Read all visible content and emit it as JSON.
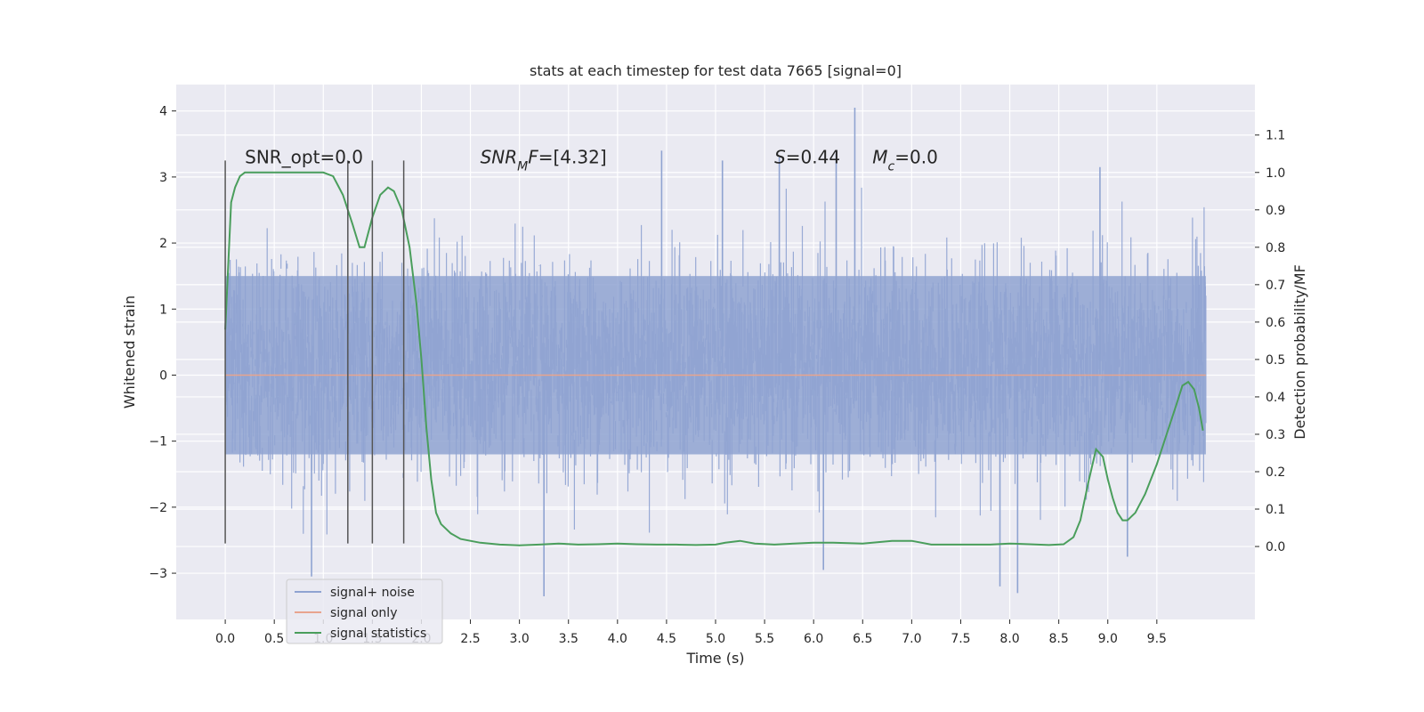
{
  "chart_data": {
    "type": "line",
    "title": "stats at each timestep for test data 7665 [signal=0]",
    "xlabel": "Time (s)",
    "ylabel": "Whitened strain",
    "y2label": "Detection probability/MF",
    "xlim": [
      -0.5,
      10.5
    ],
    "ylim": [
      -3.7,
      4.4
    ],
    "y2lim": [
      -0.195,
      1.235
    ],
    "x_ticks": [
      0.0,
      0.5,
      1.0,
      1.5,
      2.0,
      2.5,
      3.0,
      3.5,
      4.0,
      4.5,
      5.0,
      5.5,
      6.0,
      6.5,
      7.0,
      7.5,
      8.0,
      8.5,
      9.0,
      9.5
    ],
    "x_tick_labels": [
      "0.0",
      "0.5",
      "1.0",
      "1.5",
      "2.0",
      "2.5",
      "3.0",
      "3.5",
      "4.0",
      "4.5",
      "5.0",
      "5.5",
      "6.0",
      "6.5",
      "7.0",
      "7.5",
      "8.0",
      "8.5",
      "9.0",
      "9.5"
    ],
    "y_ticks": [
      -3,
      -2,
      -1,
      0,
      1,
      2,
      3,
      4
    ],
    "y_tick_labels": [
      "−3",
      "−2",
      "−1",
      "0",
      "1",
      "2",
      "3",
      "4"
    ],
    "y2_ticks": [
      0.0,
      0.1,
      0.2,
      0.3,
      0.4,
      0.5,
      0.6,
      0.7,
      0.8,
      0.9,
      1.0,
      1.1
    ],
    "y2_tick_labels": [
      "0.0",
      "0.1",
      "0.2",
      "0.3",
      "0.4",
      "0.5",
      "0.6",
      "0.7",
      "0.8",
      "0.9",
      "1.0",
      "1.1"
    ],
    "grid": true,
    "legend_placement": "lower-left",
    "annotations": [
      {
        "text": "SNR_opt=0.0",
        "x": 0.2,
        "y": 3.3
      },
      {
        "html": "SNR<tspan baseline-shift=\"sub\" font-size=\"14\">M</tspan>F=[4.32]",
        "x": 2.6,
        "y": 3.3
      },
      {
        "html": "S=0.44",
        "x": 5.6,
        "y": 3.3,
        "italic_prefix": "S"
      },
      {
        "html": "M<tspan baseline-shift=\"sub\" font-size=\"14\">c</tspan>=0.0",
        "x": 6.6,
        "y": 3.3
      }
    ],
    "vertical_lines": {
      "x": [
        0.0,
        1.25,
        1.5,
        1.82
      ],
      "y_range": [
        -2.55,
        3.25
      ],
      "color": "#555555"
    },
    "series": [
      {
        "name": "signal+ noise",
        "color": "#8fa3d1",
        "kind": "noise",
        "x_range": [
          0.0,
          10.0
        ],
        "core_band": [
          -1.2,
          1.5
        ],
        "max": 4.05,
        "min": -3.35
      },
      {
        "name": "signal only",
        "color": "#e8a48e",
        "x": [
          0.0,
          10.0
        ],
        "y": [
          0.0,
          0.0
        ]
      },
      {
        "name": "signal statistics",
        "color": "#4a9e5c",
        "axis": "right",
        "x": [
          0.0,
          0.03,
          0.06,
          0.1,
          0.15,
          0.2,
          0.3,
          0.5,
          0.8,
          1.0,
          1.1,
          1.2,
          1.3,
          1.37,
          1.42,
          1.5,
          1.58,
          1.66,
          1.72,
          1.8,
          1.88,
          1.95,
          2.0,
          2.05,
          2.1,
          2.15,
          2.2,
          2.3,
          2.4,
          2.6,
          2.8,
          3.0,
          3.2,
          3.4,
          3.6,
          3.8,
          4.0,
          4.2,
          4.4,
          4.6,
          4.8,
          5.0,
          5.1,
          5.25,
          5.4,
          5.6,
          5.8,
          6.0,
          6.2,
          6.5,
          6.8,
          7.0,
          7.2,
          7.4,
          7.6,
          7.8,
          8.0,
          8.2,
          8.4,
          8.55,
          8.65,
          8.72,
          8.8,
          8.88,
          8.95,
          9.0,
          9.05,
          9.1,
          9.15,
          9.2,
          9.28,
          9.38,
          9.5,
          9.6,
          9.7,
          9.76,
          9.82,
          9.88,
          9.93,
          9.97
        ],
        "y": [
          0.58,
          0.75,
          0.92,
          0.96,
          0.99,
          1.0,
          1.0,
          1.0,
          1.0,
          1.0,
          0.99,
          0.94,
          0.86,
          0.8,
          0.8,
          0.88,
          0.94,
          0.96,
          0.95,
          0.9,
          0.8,
          0.65,
          0.5,
          0.32,
          0.18,
          0.09,
          0.06,
          0.035,
          0.02,
          0.01,
          0.005,
          0.003,
          0.005,
          0.008,
          0.005,
          0.006,
          0.008,
          0.006,
          0.005,
          0.005,
          0.004,
          0.005,
          0.01,
          0.015,
          0.008,
          0.005,
          0.008,
          0.01,
          0.01,
          0.008,
          0.015,
          0.015,
          0.005,
          0.005,
          0.005,
          0.005,
          0.008,
          0.006,
          0.004,
          0.006,
          0.025,
          0.07,
          0.17,
          0.26,
          0.24,
          0.18,
          0.13,
          0.09,
          0.07,
          0.07,
          0.09,
          0.14,
          0.22,
          0.3,
          0.38,
          0.43,
          0.44,
          0.42,
          0.37,
          0.31
        ]
      }
    ]
  }
}
